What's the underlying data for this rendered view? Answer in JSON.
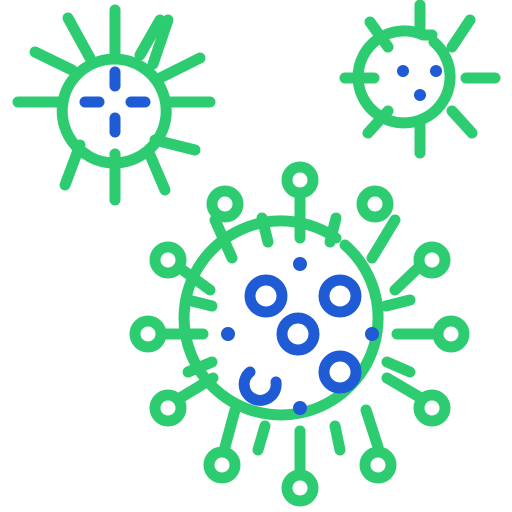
{
  "colors": {
    "outline": "#2ECC71",
    "detail": "#1F5BD4",
    "background": "#FFFFFF"
  },
  "icons": [
    "virus-icon",
    "virus-icon",
    "virus-icon"
  ]
}
